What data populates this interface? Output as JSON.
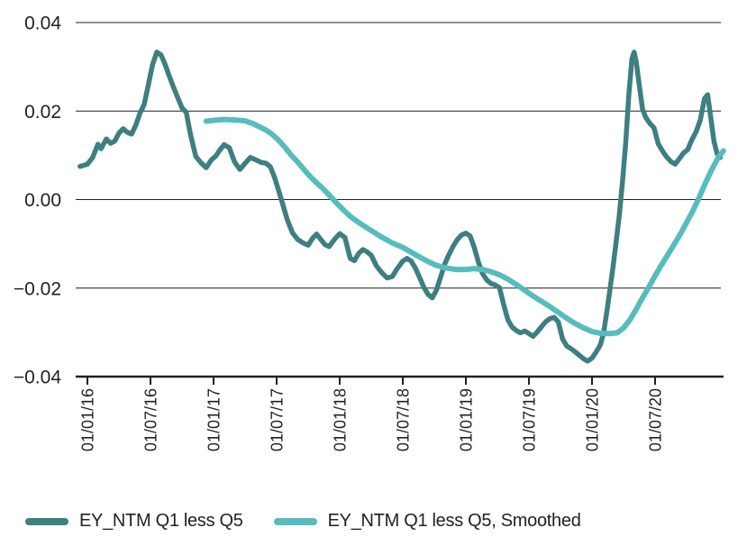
{
  "figure": {
    "background_color": "#ffffff",
    "text_color": "#231f20",
    "axis_color": "#231f20",
    "grid_color": "#231f20"
  },
  "chart_data": {
    "type": "line",
    "title": "",
    "xlabel": "",
    "ylabel": "",
    "grid": "horizontal",
    "legend_position": "bottom",
    "x_axis": {
      "unit": "months since 2016-01-01",
      "range_months": [
        -1.1,
        61.3
      ],
      "tick_months": [
        0,
        6,
        12,
        18,
        24,
        30,
        36,
        42,
        48,
        54
      ],
      "tick_labels": [
        "01/01/16",
        "01/07/16",
        "01/01/17",
        "01/07/17",
        "01/01/18",
        "01/07/18",
        "01/01/19",
        "01/07/19",
        "01/01/20",
        "01/07/20"
      ],
      "tick_label_rotation_deg": -90
    },
    "y_axis": {
      "range": [
        -0.04,
        0.04
      ],
      "tick_values": [
        0.04,
        0.02,
        0.0,
        -0.02,
        -0.04
      ],
      "tick_labels": [
        "0.04",
        "0.02",
        "0.00",
        "−0.02",
        "−0.04"
      ]
    },
    "series": [
      {
        "name": "EY_NTM Q1 less Q5",
        "color": "#3e7f81",
        "stroke_width": 5.5,
        "points": [
          [
            -0.7,
            0.0075
          ],
          [
            0,
            0.008
          ],
          [
            0.5,
            0.0095
          ],
          [
            1,
            0.0125
          ],
          [
            1.3,
            0.0115
          ],
          [
            1.8,
            0.0137
          ],
          [
            2.2,
            0.0127
          ],
          [
            2.6,
            0.0132
          ],
          [
            3,
            0.015
          ],
          [
            3.4,
            0.016
          ],
          [
            3.8,
            0.0152
          ],
          [
            4.2,
            0.0148
          ],
          [
            4.6,
            0.0168
          ],
          [
            5,
            0.0195
          ],
          [
            5.4,
            0.0215
          ],
          [
            5.8,
            0.026
          ],
          [
            6.2,
            0.0305
          ],
          [
            6.6,
            0.0333
          ],
          [
            7,
            0.0327
          ],
          [
            7.4,
            0.0305
          ],
          [
            7.8,
            0.0278
          ],
          [
            8.2,
            0.0253
          ],
          [
            8.6,
            0.023
          ],
          [
            9,
            0.0207
          ],
          [
            9.4,
            0.0197
          ],
          [
            9.8,
            0.0148
          ],
          [
            10.3,
            0.0098
          ],
          [
            10.8,
            0.0083
          ],
          [
            11.3,
            0.0072
          ],
          [
            11.8,
            0.009
          ],
          [
            12.2,
            0.0098
          ],
          [
            12.6,
            0.0112
          ],
          [
            13,
            0.0124
          ],
          [
            13.5,
            0.0117
          ],
          [
            14,
            0.0085
          ],
          [
            14.5,
            0.0068
          ],
          [
            15,
            0.0082
          ],
          [
            15.5,
            0.0095
          ],
          [
            16,
            0.009
          ],
          [
            16.5,
            0.0084
          ],
          [
            17,
            0.0082
          ],
          [
            17.4,
            0.0074
          ],
          [
            17.8,
            0.005
          ],
          [
            18.2,
            0.002
          ],
          [
            18.6,
            -0.0012
          ],
          [
            19,
            -0.0045
          ],
          [
            19.5,
            -0.0075
          ],
          [
            20,
            -0.009
          ],
          [
            20.5,
            -0.0098
          ],
          [
            21,
            -0.0103
          ],
          [
            21.4,
            -0.0088
          ],
          [
            21.8,
            -0.0078
          ],
          [
            22.2,
            -0.009
          ],
          [
            22.6,
            -0.0102
          ],
          [
            23,
            -0.0106
          ],
          [
            23.5,
            -0.009
          ],
          [
            24,
            -0.0077
          ],
          [
            24.5,
            -0.0086
          ],
          [
            25,
            -0.0133
          ],
          [
            25.4,
            -0.0138
          ],
          [
            25.8,
            -0.0122
          ],
          [
            26.2,
            -0.0113
          ],
          [
            26.6,
            -0.0118
          ],
          [
            27,
            -0.0126
          ],
          [
            27.5,
            -0.015
          ],
          [
            28,
            -0.0165
          ],
          [
            28.5,
            -0.0177
          ],
          [
            29,
            -0.0174
          ],
          [
            29.5,
            -0.0155
          ],
          [
            30,
            -0.0139
          ],
          [
            30.4,
            -0.0133
          ],
          [
            30.8,
            -0.0139
          ],
          [
            31.2,
            -0.0155
          ],
          [
            31.6,
            -0.0176
          ],
          [
            32,
            -0.0198
          ],
          [
            32.4,
            -0.0214
          ],
          [
            32.8,
            -0.0222
          ],
          [
            33.2,
            -0.0205
          ],
          [
            33.6,
            -0.0175
          ],
          [
            34,
            -0.0145
          ],
          [
            34.4,
            -0.0124
          ],
          [
            34.8,
            -0.0105
          ],
          [
            35.2,
            -0.009
          ],
          [
            35.6,
            -0.008
          ],
          [
            36,
            -0.0076
          ],
          [
            36.4,
            -0.0082
          ],
          [
            36.8,
            -0.0108
          ],
          [
            37.2,
            -0.0142
          ],
          [
            37.6,
            -0.0168
          ],
          [
            38,
            -0.0182
          ],
          [
            38.4,
            -0.019
          ],
          [
            38.8,
            -0.0193
          ],
          [
            39.2,
            -0.0199
          ],
          [
            39.6,
            -0.0238
          ],
          [
            40,
            -0.0272
          ],
          [
            40.4,
            -0.0288
          ],
          [
            40.8,
            -0.0296
          ],
          [
            41.2,
            -0.0301
          ],
          [
            41.6,
            -0.0297
          ],
          [
            42,
            -0.0303
          ],
          [
            42.4,
            -0.0309
          ],
          [
            42.8,
            -0.0299
          ],
          [
            43.2,
            -0.0287
          ],
          [
            43.6,
            -0.0276
          ],
          [
            44,
            -0.0269
          ],
          [
            44.4,
            -0.0266
          ],
          [
            44.8,
            -0.0277
          ],
          [
            45.2,
            -0.0315
          ],
          [
            45.6,
            -0.0331
          ],
          [
            46,
            -0.0337
          ],
          [
            46.4,
            -0.0344
          ],
          [
            46.8,
            -0.0352
          ],
          [
            47.2,
            -0.036
          ],
          [
            47.6,
            -0.0365
          ],
          [
            48,
            -0.0358
          ],
          [
            48.4,
            -0.0344
          ],
          [
            48.8,
            -0.0328
          ],
          [
            49.1,
            -0.0302
          ],
          [
            49.4,
            -0.0255
          ],
          [
            49.7,
            -0.0205
          ],
          [
            50,
            -0.0152
          ],
          [
            50.3,
            -0.0095
          ],
          [
            50.6,
            -0.0035
          ],
          [
            50.9,
            0.004
          ],
          [
            51.2,
            0.0125
          ],
          [
            51.5,
            0.0235
          ],
          [
            51.8,
            0.0318
          ],
          [
            52,
            0.0333
          ],
          [
            52.2,
            0.0312
          ],
          [
            52.5,
            0.0258
          ],
          [
            52.8,
            0.0205
          ],
          [
            53.1,
            0.0186
          ],
          [
            53.5,
            0.0172
          ],
          [
            53.9,
            0.0162
          ],
          [
            54.3,
            0.0126
          ],
          [
            54.7,
            0.011
          ],
          [
            55.1,
            0.0096
          ],
          [
            55.5,
            0.0086
          ],
          [
            55.9,
            0.008
          ],
          [
            56.3,
            0.0092
          ],
          [
            56.7,
            0.0105
          ],
          [
            57.1,
            0.0113
          ],
          [
            57.5,
            0.0135
          ],
          [
            57.9,
            0.0153
          ],
          [
            58.3,
            0.018
          ],
          [
            58.7,
            0.0228
          ],
          [
            59,
            0.0237
          ],
          [
            59.3,
            0.0185
          ],
          [
            59.6,
            0.0132
          ],
          [
            59.9,
            0.0104
          ],
          [
            60.2,
            0.0095
          ]
        ]
      },
      {
        "name": "EY_NTM Q1 less Q5, Smoothed",
        "color": "#56bcbd",
        "stroke_width": 6,
        "points": [
          [
            11.3,
            0.0177
          ],
          [
            12,
            0.0179
          ],
          [
            13,
            0.0181
          ],
          [
            14,
            0.018
          ],
          [
            15,
            0.0178
          ],
          [
            15.7,
            0.0172
          ],
          [
            16.4,
            0.0164
          ],
          [
            17,
            0.0157
          ],
          [
            17.6,
            0.0147
          ],
          [
            18.2,
            0.0134
          ],
          [
            18.8,
            0.0118
          ],
          [
            19.4,
            0.01
          ],
          [
            20,
            0.0085
          ],
          [
            20.6,
            0.0068
          ],
          [
            21.2,
            0.0052
          ],
          [
            21.8,
            0.0038
          ],
          [
            22.4,
            0.0025
          ],
          [
            23,
            0.001
          ],
          [
            23.6,
            -0.0005
          ],
          [
            24.2,
            -0.002
          ],
          [
            25,
            -0.0038
          ],
          [
            26,
            -0.0055
          ],
          [
            27,
            -0.007
          ],
          [
            28,
            -0.0085
          ],
          [
            29,
            -0.0098
          ],
          [
            30,
            -0.0108
          ],
          [
            31,
            -0.0122
          ],
          [
            32,
            -0.0135
          ],
          [
            33,
            -0.0147
          ],
          [
            34,
            -0.0154
          ],
          [
            35,
            -0.0158
          ],
          [
            36,
            -0.0158
          ],
          [
            36.8,
            -0.0156
          ],
          [
            37.6,
            -0.0158
          ],
          [
            38.4,
            -0.0163
          ],
          [
            39.2,
            -0.017
          ],
          [
            40,
            -0.018
          ],
          [
            40.8,
            -0.0192
          ],
          [
            41.6,
            -0.0205
          ],
          [
            42.4,
            -0.0218
          ],
          [
            43.2,
            -0.023
          ],
          [
            44,
            -0.0242
          ],
          [
            44.8,
            -0.0255
          ],
          [
            45.6,
            -0.0268
          ],
          [
            46.4,
            -0.028
          ],
          [
            47.2,
            -0.029
          ],
          [
            48,
            -0.0298
          ],
          [
            48.8,
            -0.0302
          ],
          [
            49.6,
            -0.0303
          ],
          [
            50.4,
            -0.0301
          ],
          [
            51,
            -0.029
          ],
          [
            51.6,
            -0.0272
          ],
          [
            52.2,
            -0.0248
          ],
          [
            52.8,
            -0.0222
          ],
          [
            53.4,
            -0.0198
          ],
          [
            54,
            -0.0172
          ],
          [
            54.6,
            -0.0148
          ],
          [
            55.2,
            -0.0125
          ],
          [
            55.8,
            -0.0102
          ],
          [
            56.4,
            -0.0078
          ],
          [
            57,
            -0.0052
          ],
          [
            57.6,
            -0.0025
          ],
          [
            58.2,
            0.0005
          ],
          [
            58.8,
            0.0038
          ],
          [
            59.4,
            0.0068
          ],
          [
            60,
            0.0095
          ],
          [
            60.5,
            0.011
          ]
        ]
      }
    ]
  }
}
